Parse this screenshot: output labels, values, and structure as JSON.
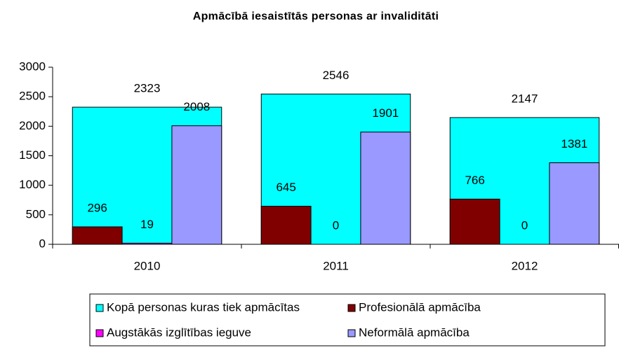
{
  "chart_data": {
    "type": "bar",
    "title": "Apmācībā iesaistītās personas ar invaliditāti",
    "categories": [
      "2010",
      "2011",
      "2012"
    ],
    "series": [
      {
        "name": "Kopā personas kuras tiek apmācītas",
        "color": "#00ffff",
        "values": [
          2323,
          2546,
          2147
        ]
      },
      {
        "name": "Profesionālā apmācība",
        "color": "#800000",
        "values": [
          296,
          645,
          766
        ]
      },
      {
        "name": "Augstākās izglītības ieguve",
        "color": "#ff00ff",
        "values": [
          19,
          0,
          0
        ]
      },
      {
        "name": "Neformālā apmācība",
        "color": "#9999ff",
        "values": [
          2008,
          1901,
          1381
        ]
      }
    ],
    "ylim": [
      0,
      3000
    ],
    "yticks": [
      0,
      500,
      1000,
      1500,
      2000,
      2500,
      3000
    ],
    "grid": false,
    "legend": "bottom"
  }
}
